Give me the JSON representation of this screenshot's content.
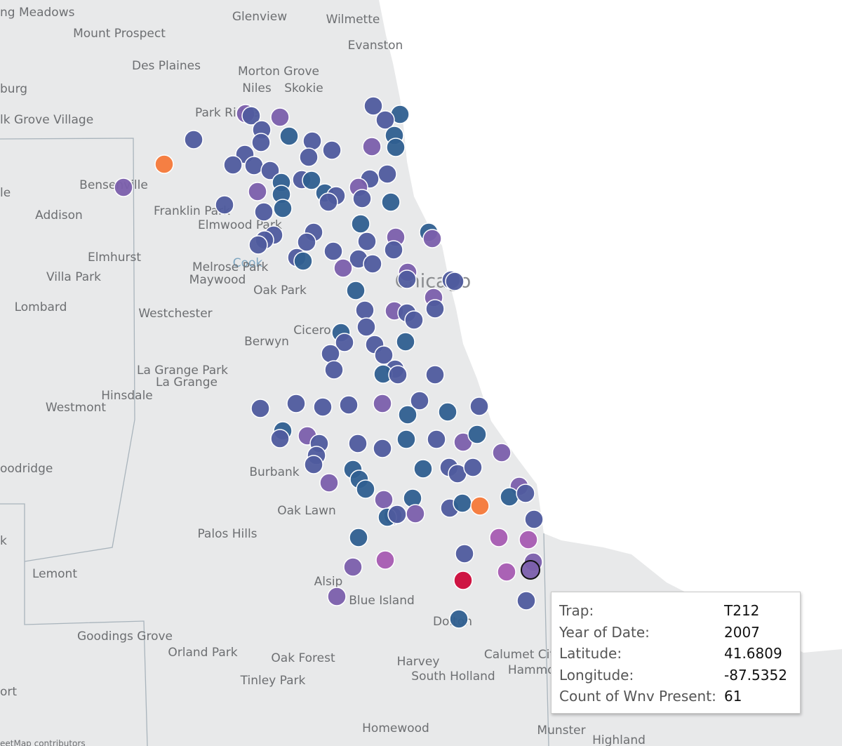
{
  "places": [
    "ng Meadows",
    "Glenview",
    "Wilmette",
    "Mount Prospect",
    "Evanston",
    "Des Plaines",
    "Morton Grove",
    "burg",
    "Niles",
    "Skokie",
    "Park Ridge",
    "lk Grove Village",
    "le",
    "Bensenville",
    "Addison",
    "Franklin Park",
    "Elmwood Park",
    "Elmhurst",
    "Cook",
    "Melrose Park",
    "Villa Park",
    "Maywood",
    "Chicago",
    "Oak Park",
    "Lombard",
    "Westchester",
    "Cicero",
    "Berwyn",
    "La Grange Park",
    "La Grange",
    "Hinsdale",
    "Westmont",
    "oodridge",
    "Burbank",
    "Oak Lawn",
    "Palos Hills",
    "k",
    "Lemont",
    "Alsip",
    "Blue Island",
    "Dolton",
    "Goodings Grove",
    "Orland Park",
    "Oak Forest",
    "Calumet City",
    "Harvey",
    "Hammond",
    "South Holland",
    "Tinley Park",
    "ort",
    "Homewood",
    "Munster",
    "Highland"
  ],
  "attribution": "eetMap contributors",
  "tooltip": {
    "rows": [
      {
        "label": "Trap:",
        "value": "T212"
      },
      {
        "label": "Year of Date:",
        "value": 2007
      },
      {
        "label": "Latitude:",
        "value": 41.6809
      },
      {
        "label": "Longitude:",
        "value": -87.5352
      },
      {
        "label": "Count of Wnv Present:",
        "value": 61
      }
    ]
  }
}
